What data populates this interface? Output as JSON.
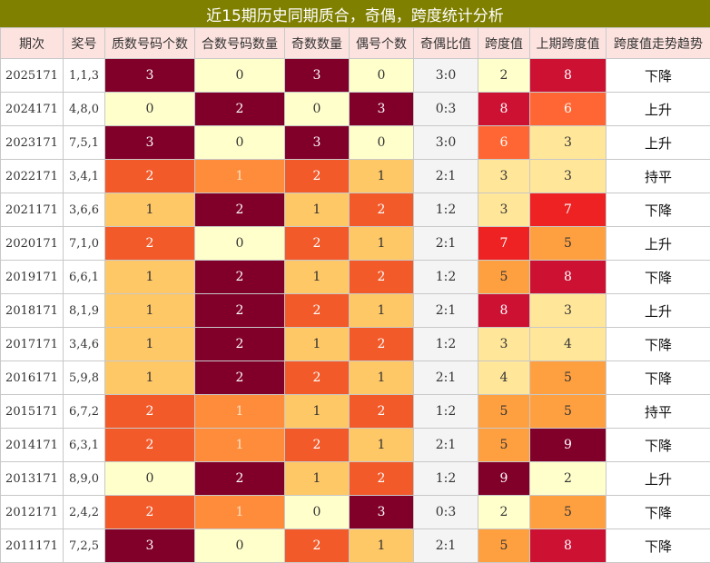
{
  "title": "近15期历史同期质合，奇偶，跨度统计分析",
  "headers": [
    "期次",
    "奖号",
    "质数号码个数",
    "合数号码数量",
    "奇数数量",
    "偶号个数",
    "奇偶比值",
    "跨度值",
    "上期跨度值",
    "跨度值走势趋势"
  ],
  "colors": {
    "0": "#ffffcc",
    "1": "#ffc866",
    "2": "#fe8c3b",
    "3": "#80002a",
    "span_light": "#ffe699",
    "span_mid": "#ffa040",
    "span_high": "#ff6633",
    "span_red": "#ee2222",
    "span_dark": "#80002a"
  },
  "rows": [
    {
      "period": "2025171",
      "award": "1,1,3",
      "prime": "3",
      "composite": "0",
      "odd": "3",
      "even": "0",
      "ratio": "3:0",
      "span": "2",
      "prev_span": "8",
      "trend": "下降"
    },
    {
      "period": "2024171",
      "award": "4,8,0",
      "prime": "0",
      "composite": "2",
      "odd": "0",
      "even": "3",
      "ratio": "0:3",
      "span": "8",
      "prev_span": "6",
      "trend": "上升"
    },
    {
      "period": "2023171",
      "award": "7,5,1",
      "prime": "3",
      "composite": "0",
      "odd": "3",
      "even": "0",
      "ratio": "3:0",
      "span": "6",
      "prev_span": "3",
      "trend": "上升"
    },
    {
      "period": "2022171",
      "award": "3,4,1",
      "prime": "2",
      "composite": "1",
      "odd": "2",
      "even": "1",
      "ratio": "2:1",
      "span": "3",
      "prev_span": "3",
      "trend": "持平"
    },
    {
      "period": "2021171",
      "award": "3,6,6",
      "prime": "1",
      "composite": "2",
      "odd": "1",
      "even": "2",
      "ratio": "1:2",
      "span": "3",
      "prev_span": "7",
      "trend": "下降"
    },
    {
      "period": "2020171",
      "award": "7,1,0",
      "prime": "2",
      "composite": "0",
      "odd": "2",
      "even": "1",
      "ratio": "2:1",
      "span": "7",
      "prev_span": "5",
      "trend": "上升"
    },
    {
      "period": "2019171",
      "award": "6,6,1",
      "prime": "1",
      "composite": "2",
      "odd": "1",
      "even": "2",
      "ratio": "1:2",
      "span": "5",
      "prev_span": "8",
      "trend": "下降"
    },
    {
      "period": "2018171",
      "award": "8,1,9",
      "prime": "1",
      "composite": "2",
      "odd": "2",
      "even": "1",
      "ratio": "2:1",
      "span": "8",
      "prev_span": "3",
      "trend": "上升"
    },
    {
      "period": "2017171",
      "award": "3,4,6",
      "prime": "1",
      "composite": "2",
      "odd": "1",
      "even": "2",
      "ratio": "1:2",
      "span": "3",
      "prev_span": "4",
      "trend": "下降"
    },
    {
      "period": "2016171",
      "award": "5,9,8",
      "prime": "1",
      "composite": "2",
      "odd": "2",
      "even": "1",
      "ratio": "2:1",
      "span": "4",
      "prev_span": "5",
      "trend": "下降"
    },
    {
      "period": "2015171",
      "award": "6,7,2",
      "prime": "2",
      "composite": "1",
      "odd": "1",
      "even": "2",
      "ratio": "1:2",
      "span": "5",
      "prev_span": "5",
      "trend": "持平"
    },
    {
      "period": "2014171",
      "award": "6,3,1",
      "prime": "2",
      "composite": "1",
      "odd": "2",
      "even": "1",
      "ratio": "2:1",
      "span": "5",
      "prev_span": "9",
      "trend": "下降"
    },
    {
      "period": "2013171",
      "award": "8,9,0",
      "prime": "0",
      "composite": "2",
      "odd": "1",
      "even": "2",
      "ratio": "1:2",
      "span": "9",
      "prev_span": "2",
      "trend": "上升"
    },
    {
      "period": "2012171",
      "award": "2,4,2",
      "prime": "2",
      "composite": "1",
      "odd": "0",
      "even": "3",
      "ratio": "0:3",
      "span": "2",
      "prev_span": "5",
      "trend": "下降"
    },
    {
      "period": "2011171",
      "award": "7,2,5",
      "prime": "3",
      "composite": "0",
      "odd": "2",
      "even": "1",
      "ratio": "2:1",
      "span": "5",
      "prev_span": "8",
      "trend": "下降"
    }
  ]
}
